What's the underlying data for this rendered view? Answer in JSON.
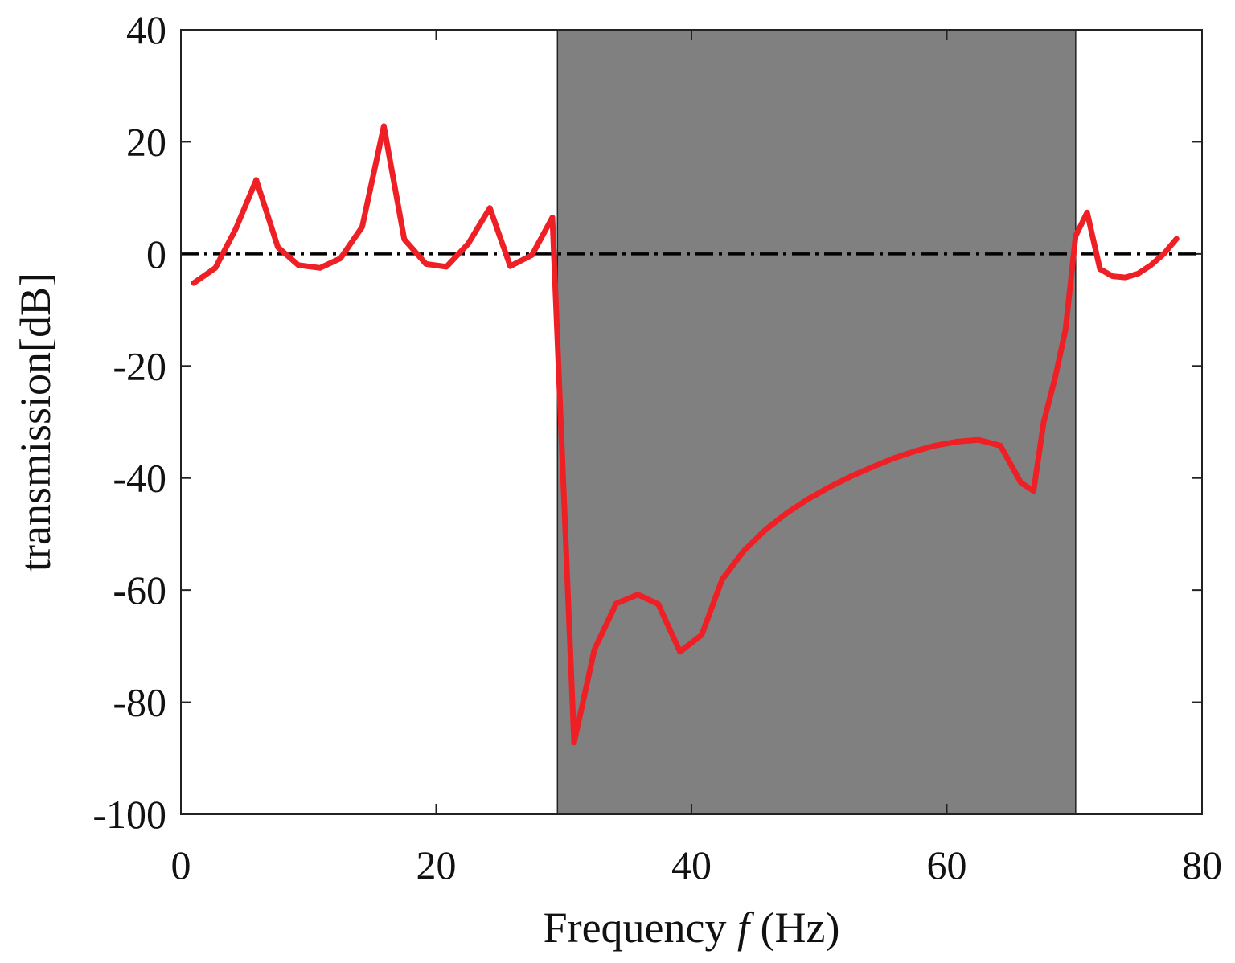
{
  "chart_data": {
    "type": "line",
    "xlabel": "Frequency",
    "xlabel_var": "f",
    "xlabel_unit": "(Hz)",
    "ylabel": "transmission[dB]",
    "xlim": [
      0,
      80
    ],
    "ylim": [
      -100,
      40
    ],
    "xticks": [
      0,
      20,
      40,
      60,
      80
    ],
    "yticks": [
      40,
      20,
      0,
      -20,
      -40,
      -60,
      -80,
      -100
    ],
    "ytick_labels": [
      "40",
      "20",
      "0",
      "-20",
      "-40",
      "-60",
      "-80",
      "-100"
    ],
    "grid": false,
    "shaded_band": {
      "x_start": 29.5,
      "x_end": 70.1,
      "color": "#808080"
    },
    "reference_line": {
      "y": 0,
      "style": "dash-dot",
      "color": "#000000"
    },
    "series": [
      {
        "color": "#ee2026",
        "x": [
          1,
          2.7,
          4.3,
          5.9,
          7.6,
          9.2,
          10.9,
          12.5,
          14.2,
          15.9,
          17.5,
          19.2,
          20.8,
          22.5,
          24.2,
          25.8,
          27.5,
          29.1,
          30.8,
          32.4,
          34.1,
          35.8,
          37.4,
          39.1,
          40.8,
          42.4,
          44.1,
          45.8,
          47.5,
          49.1,
          50.8,
          52.5,
          54.2,
          55.8,
          57.5,
          59.1,
          60.8,
          62.5,
          64.2,
          65.8,
          66.8,
          67.6,
          68.5,
          69.3,
          70.1,
          71,
          72,
          73,
          74,
          75,
          76,
          77,
          78
        ],
        "y": [
          -5.2,
          -2.5,
          4.5,
          13.2,
          1.2,
          -2,
          -2.5,
          -0.8,
          4.8,
          22.8,
          2.6,
          -1.8,
          -2.3,
          1.8,
          8.2,
          -2.2,
          -0.2,
          6.5,
          -87.2,
          -70.6,
          -62.4,
          -60.8,
          -62.5,
          -71,
          -68,
          -58.1,
          -53,
          -49.2,
          -46.2,
          -43.8,
          -41.6,
          -39.7,
          -38,
          -36.5,
          -35.2,
          -34.2,
          -33.5,
          -33.2,
          -34.2,
          -40.8,
          -42.3,
          -30,
          -22,
          -13.6,
          3.2,
          7.4,
          -2.7,
          -4,
          -4.2,
          -3.5,
          -2,
          0,
          2.7
        ]
      }
    ]
  }
}
